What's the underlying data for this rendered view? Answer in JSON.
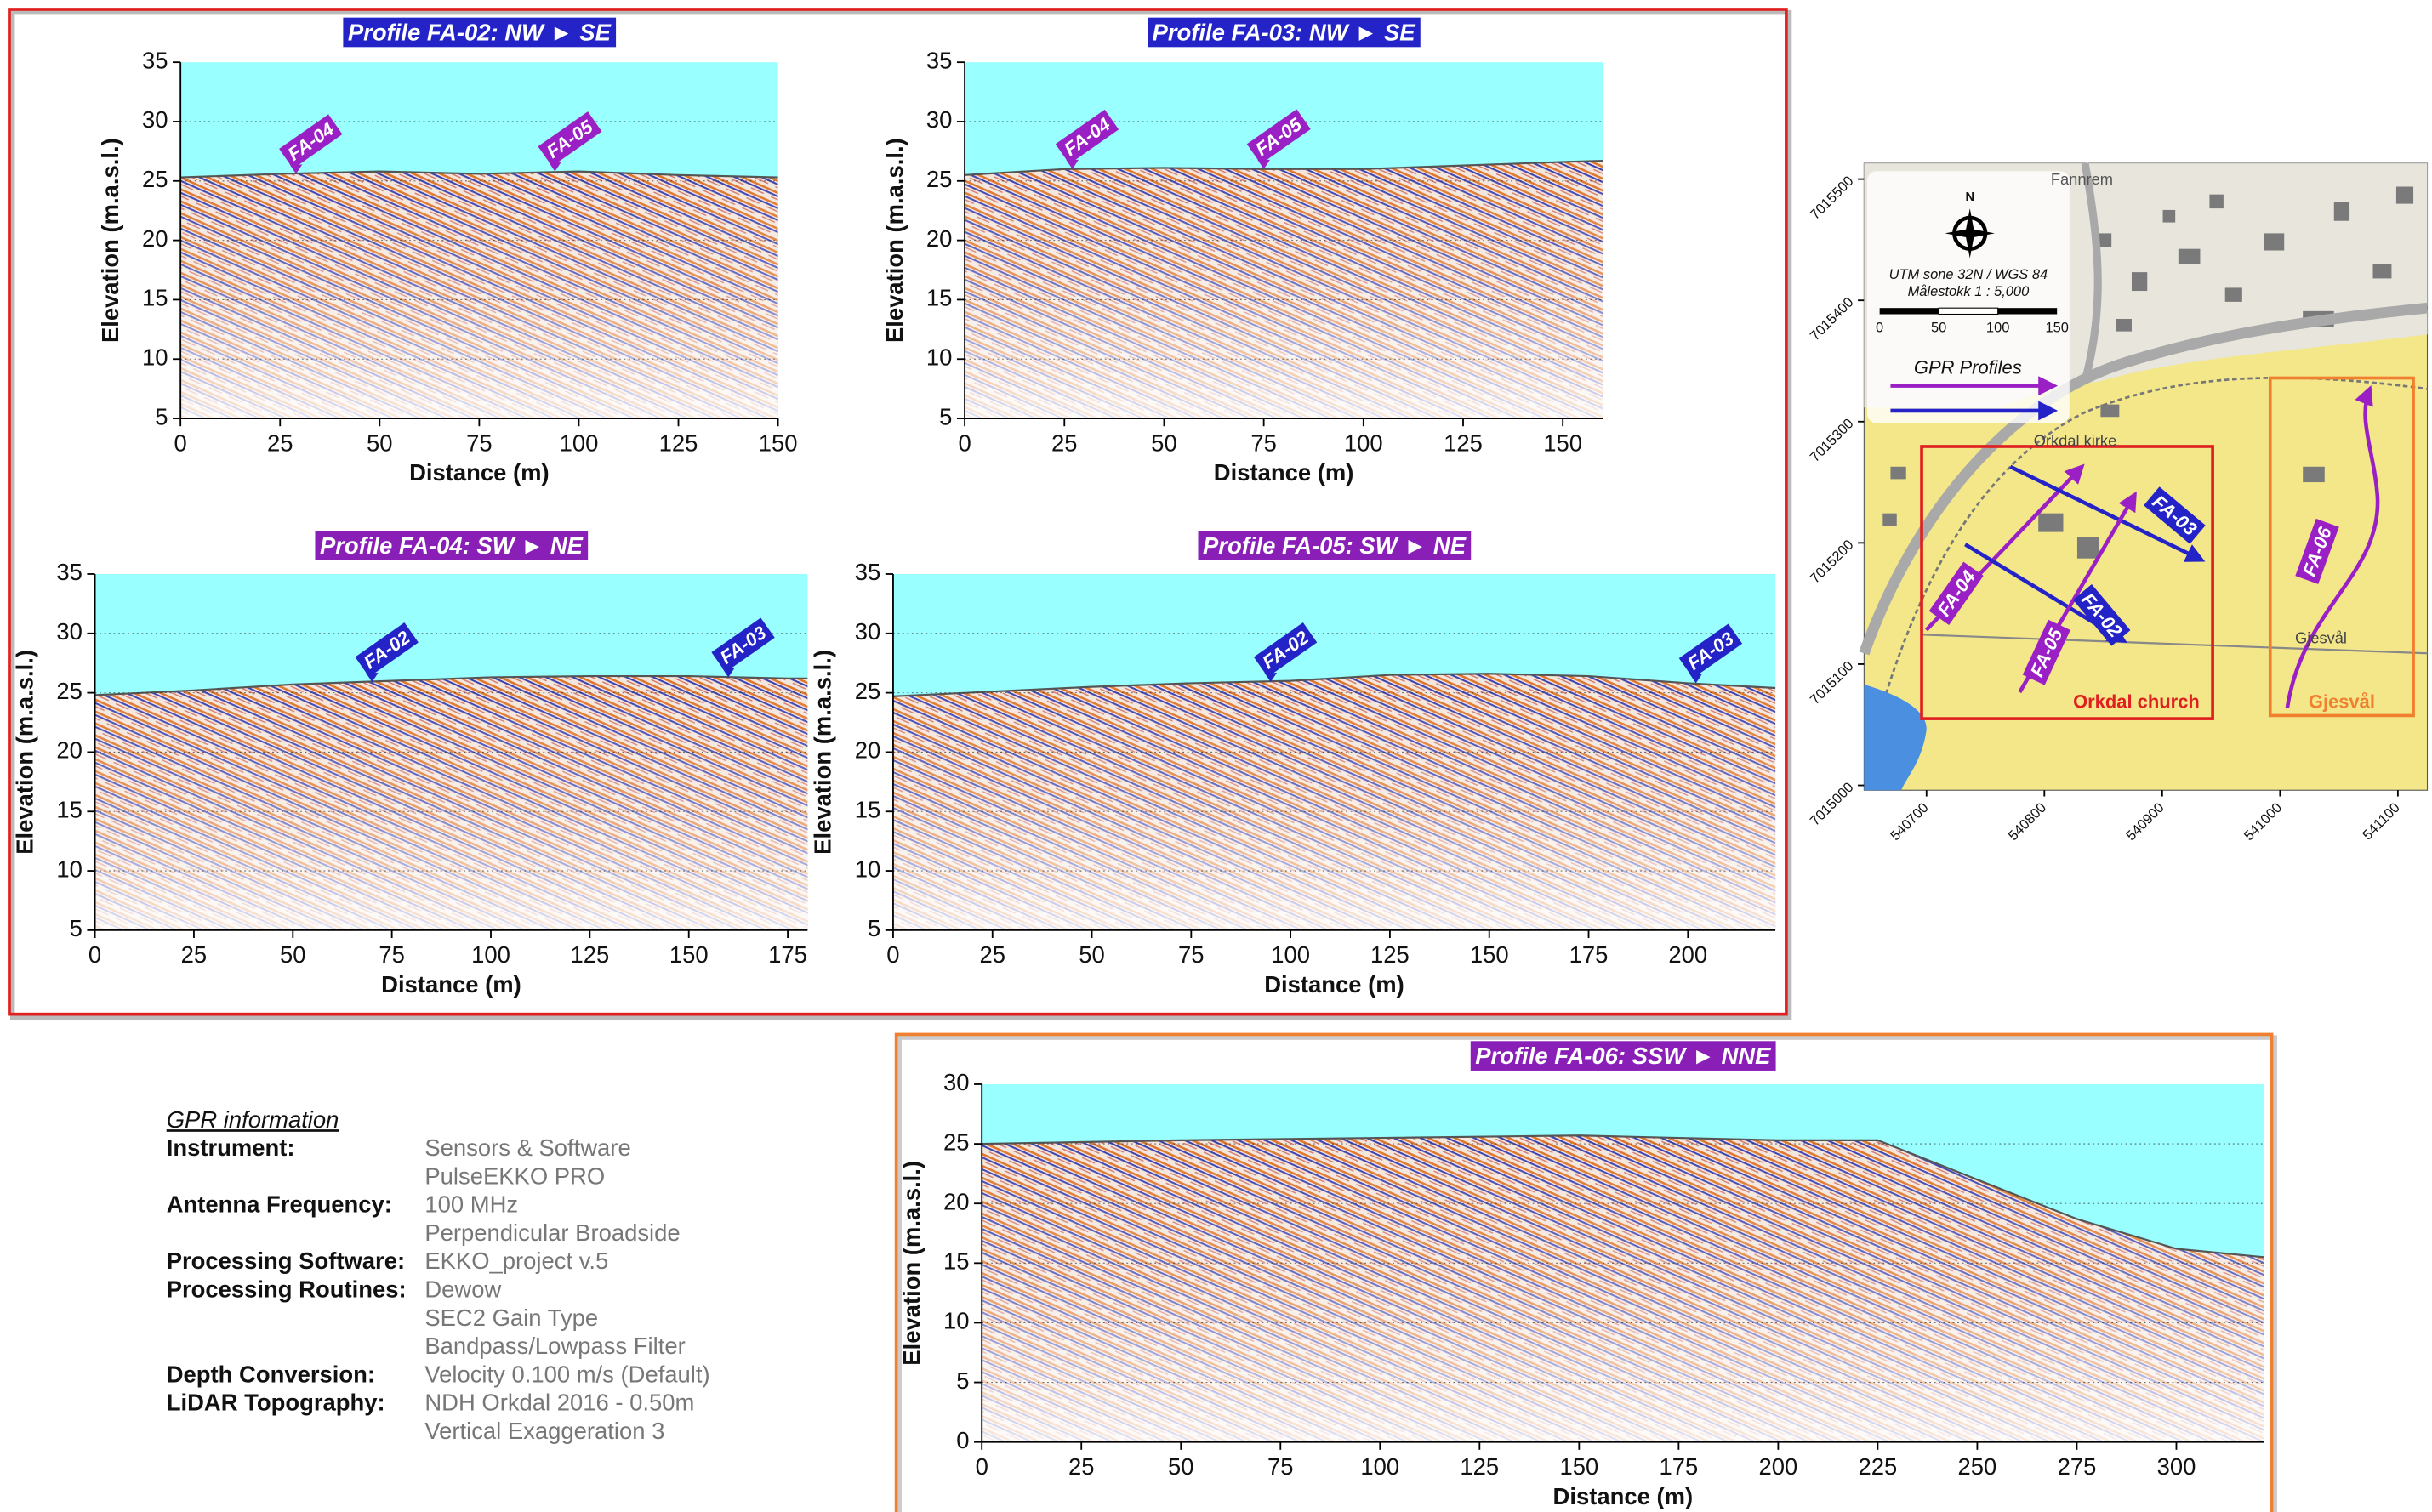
{
  "chart_data": [
    {
      "type": "radargram",
      "title": "Profile FA-02: NW ► SE",
      "title_color": "#2323c8",
      "xlabel": "Distance (m)",
      "ylabel": "Elevation (m.a.s.l.)",
      "xlim": [
        0,
        150
      ],
      "ylim": [
        5,
        35
      ],
      "xticks": [
        0,
        25,
        50,
        75,
        100,
        125,
        150
      ],
      "yticks": [
        5,
        10,
        15,
        20,
        25,
        30,
        35
      ],
      "grid": true,
      "sky_color": "#99ffff",
      "surface": {
        "x": [
          0,
          25,
          50,
          75,
          100,
          125,
          150
        ],
        "values": [
          25.3,
          25.6,
          25.8,
          25.6,
          25.8,
          25.5,
          25.3
        ]
      },
      "markers": [
        {
          "label": "FA-04",
          "x": 29,
          "y": 25.6,
          "color": "#9a1fc4"
        },
        {
          "label": "FA-05",
          "x": 94,
          "y": 25.8,
          "color": "#9a1fc4"
        }
      ]
    },
    {
      "type": "radargram",
      "title": "Profile FA-03: NW ► SE",
      "title_color": "#2323c8",
      "xlabel": "Distance (m)",
      "ylabel": "Elevation (m.a.s.l.)",
      "xlim": [
        0,
        160
      ],
      "ylim": [
        5,
        35
      ],
      "xticks": [
        0,
        25,
        50,
        75,
        100,
        125,
        150
      ],
      "yticks": [
        5,
        10,
        15,
        20,
        25,
        30,
        35
      ],
      "grid": true,
      "sky_color": "#99ffff",
      "surface": {
        "x": [
          0,
          25,
          50,
          75,
          100,
          125,
          150,
          160
        ],
        "values": [
          25.5,
          26,
          26.1,
          26,
          26,
          26.3,
          26.6,
          26.7
        ]
      },
      "markers": [
        {
          "label": "FA-04",
          "x": 27,
          "y": 26,
          "color": "#9a1fc4"
        },
        {
          "label": "FA-05",
          "x": 75,
          "y": 26,
          "color": "#9a1fc4"
        }
      ]
    },
    {
      "type": "radargram",
      "title": "Profile FA-04: SW ► NE",
      "title_color": "#8a1fb8",
      "xlabel": "Distance (m)",
      "ylabel": "Elevation (m.a.s.l.)",
      "xlim": [
        0,
        180
      ],
      "ylim": [
        5,
        35
      ],
      "xticks": [
        0,
        25,
        50,
        75,
        100,
        125,
        150,
        175
      ],
      "yticks": [
        5,
        10,
        15,
        20,
        25,
        30,
        35
      ],
      "grid": true,
      "sky_color": "#99ffff",
      "surface": {
        "x": [
          0,
          25,
          50,
          75,
          100,
          125,
          150,
          175,
          180
        ],
        "values": [
          24.8,
          25.2,
          25.7,
          26,
          26.3,
          26.4,
          26.4,
          26.2,
          26.2
        ]
      },
      "markers": [
        {
          "label": "FA-02",
          "x": 70,
          "y": 25.9,
          "color": "#2323c8"
        },
        {
          "label": "FA-03",
          "x": 160,
          "y": 26.3,
          "color": "#2323c8"
        }
      ]
    },
    {
      "type": "radargram",
      "title": "Profile FA-05: SW ► NE",
      "title_color": "#8a1fb8",
      "xlabel": "Distance (m)",
      "ylabel": "Elevation (m.a.s.l.)",
      "xlim": [
        0,
        222
      ],
      "ylim": [
        5,
        35
      ],
      "xticks": [
        0,
        25,
        50,
        75,
        100,
        125,
        150,
        175,
        200
      ],
      "yticks": [
        5,
        10,
        15,
        20,
        25,
        30,
        35
      ],
      "grid": true,
      "sky_color": "#99ffff",
      "surface": {
        "x": [
          0,
          25,
          50,
          75,
          100,
          125,
          150,
          175,
          200,
          222
        ],
        "values": [
          24.7,
          25.1,
          25.5,
          25.8,
          26,
          26.5,
          26.6,
          26.4,
          25.8,
          25.4
        ]
      },
      "markers": [
        {
          "label": "FA-02",
          "x": 95,
          "y": 25.9,
          "color": "#2323c8"
        },
        {
          "label": "FA-03",
          "x": 202,
          "y": 25.8,
          "color": "#2323c8"
        }
      ]
    },
    {
      "type": "radargram",
      "title": "Profile FA-06: SSW ► NNE",
      "title_color": "#8a1fb8",
      "xlabel": "Distance (m)",
      "ylabel": "Elevation (m.a.s.l.)",
      "xlim": [
        0,
        322
      ],
      "ylim": [
        0,
        30
      ],
      "xticks": [
        0,
        25,
        50,
        75,
        100,
        125,
        150,
        175,
        200,
        225,
        250,
        275,
        300
      ],
      "yticks": [
        0,
        5,
        10,
        15,
        20,
        25,
        30
      ],
      "grid": true,
      "sky_color": "#99ffff",
      "surface": {
        "x": [
          0,
          50,
          100,
          150,
          175,
          200,
          225,
          250,
          275,
          300,
          322
        ],
        "values": [
          25,
          25.3,
          25.5,
          25.7,
          25.5,
          25.3,
          25.3,
          22,
          18.7,
          16.2,
          15.5
        ]
      },
      "markers": []
    }
  ],
  "map": {
    "north": "N",
    "datum": "UTM sone 32N / WGS 84",
    "scale": "Målestokk 1 : 5,000",
    "scale_ticks": [
      0,
      50,
      100,
      150
    ],
    "legend": "GPR Profiles",
    "places": [
      "Fannrem",
      "Orkdal kirke",
      "Gjesvål"
    ],
    "boxes": [
      "Orkdal church",
      "Gjesvål"
    ],
    "profiles": [
      "FA-02",
      "FA-03",
      "FA-04",
      "FA-05",
      "FA-06"
    ],
    "xlim": [
      540647,
      541125
    ],
    "ylim": [
      7014996,
      7015513
    ],
    "xticks": [
      540700,
      540800,
      540900,
      541000,
      541100
    ],
    "yticks": [
      7015000,
      7015100,
      7015200,
      7015300,
      7015400,
      7015500
    ]
  },
  "gpr_info": {
    "title": "GPR information",
    "rows": [
      {
        "label": "Instrument:",
        "lines": [
          "Sensors & Software",
          "PulseEKKO PRO"
        ]
      },
      {
        "label": "Antenna Frequency:",
        "lines": [
          "100 MHz",
          "Perpendicular Broadside"
        ]
      },
      {
        "label": "Processing Software:",
        "lines": [
          "EKKO_project v.5"
        ]
      },
      {
        "label": "Processing Routines:",
        "lines": [
          "Dewow",
          "SEC2 Gain Type",
          "Bandpass/Lowpass Filter"
        ]
      },
      {
        "label": "Depth Conversion:",
        "lines": [
          "Velocity 0.100 m/s (Default)"
        ]
      },
      {
        "label": "LiDAR Topography:",
        "lines": [
          "NDH Orkdal 2016 - 0.50m",
          "Vertical Exaggeration 3"
        ]
      }
    ]
  }
}
